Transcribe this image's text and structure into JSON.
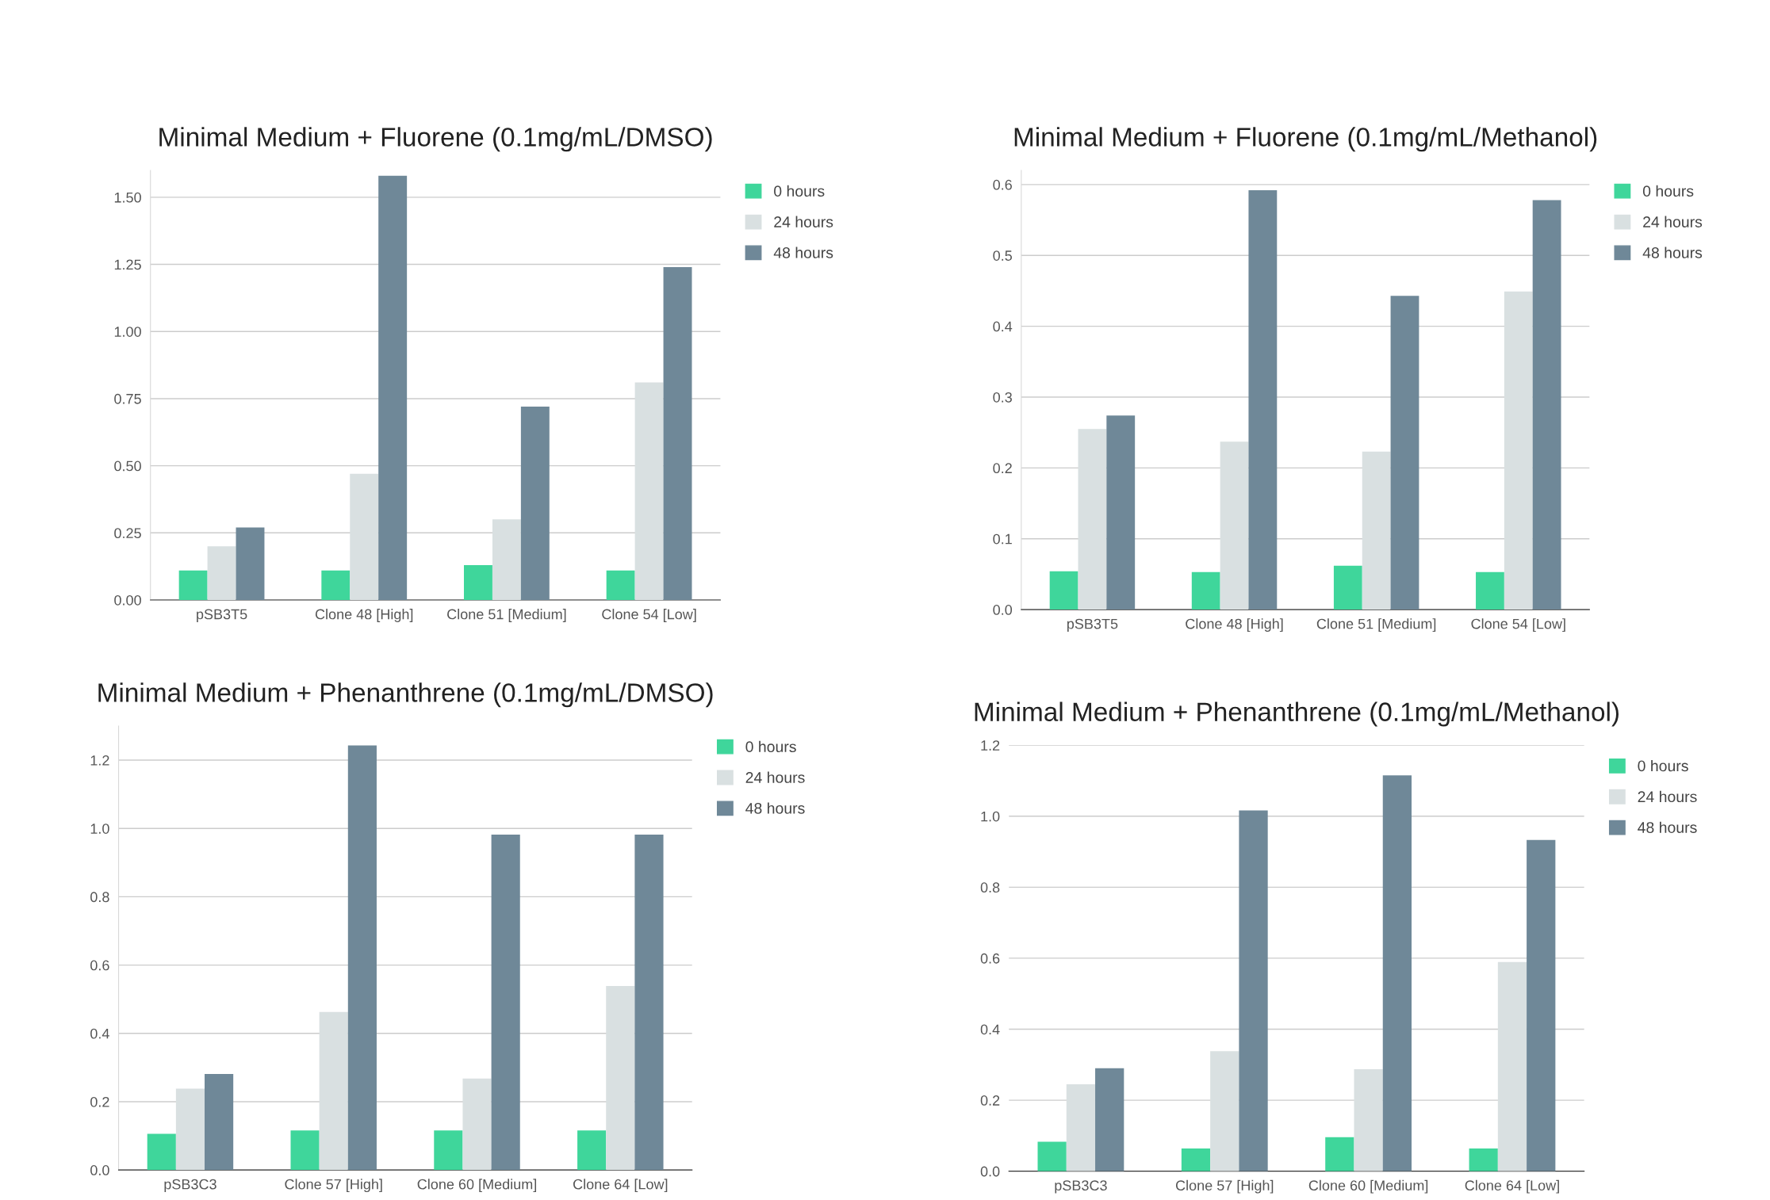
{
  "chart_data": [
    {
      "type": "bar",
      "title": "Minimal Medium + Fluorene (0.1mg/mL/DMSO)",
      "categories": [
        "pSB3T5",
        "Clone 48 [High]",
        "Clone 51 [Medium]",
        "Clone 54 [Low]"
      ],
      "series": [
        {
          "name": "0 hours",
          "color": "#3fd69b",
          "values": [
            0.11,
            0.11,
            0.13,
            0.11
          ]
        },
        {
          "name": "24 hours",
          "color": "#d9e0e1",
          "values": [
            0.2,
            0.47,
            0.3,
            0.81
          ]
        },
        {
          "name": "48 hours",
          "color": "#6f8898",
          "values": [
            0.27,
            1.58,
            0.72,
            1.24
          ]
        }
      ],
      "ylim": [
        0,
        1.6
      ],
      "yticks": [
        {
          "value": 0,
          "label": "0.00"
        },
        {
          "value": 0.25,
          "label": "0.25"
        },
        {
          "value": 0.5,
          "label": "0.50"
        },
        {
          "value": 0.75,
          "label": "0.75"
        },
        {
          "value": 1,
          "label": "1.00"
        },
        {
          "value": 1.25,
          "label": "1.25"
        },
        {
          "value": 1.5,
          "label": "1.50"
        }
      ],
      "grid": "y",
      "legend": "right"
    },
    {
      "type": "bar",
      "title": "Minimal Medium + Fluorene (0.1mg/mL/Methanol)",
      "categories": [
        "pSB3T5",
        "Clone 48 [High]",
        "Clone 51 [Medium]",
        "Clone 54 [Low]"
      ],
      "series": [
        {
          "name": "0 hours",
          "color": "#3fd69b",
          "values": [
            0.054,
            0.053,
            0.062,
            0.053
          ]
        },
        {
          "name": "24 hours",
          "color": "#d9e0e1",
          "values": [
            0.255,
            0.237,
            0.223,
            0.449
          ]
        },
        {
          "name": "48 hours",
          "color": "#6f8898",
          "values": [
            0.274,
            0.592,
            0.443,
            0.578
          ]
        }
      ],
      "ylim": [
        0,
        0.62
      ],
      "yticks": [
        {
          "value": 0,
          "label": "0.0"
        },
        {
          "value": 0.1,
          "label": "0.1"
        },
        {
          "value": 0.2,
          "label": "0.2"
        },
        {
          "value": 0.3,
          "label": "0.3"
        },
        {
          "value": 0.4,
          "label": "0.4"
        },
        {
          "value": 0.5,
          "label": "0.5"
        },
        {
          "value": 0.6,
          "label": "0.6"
        }
      ],
      "grid": "y",
      "legend": "right"
    },
    {
      "type": "bar",
      "title": "Minimal Medium + Phenanthrene (0.1mg/mL/DMSO)",
      "categories": [
        "pSB3C3",
        "Clone 57 [High]",
        "Clone 60 [Medium]",
        "Clone 64 [Low]"
      ],
      "series": [
        {
          "name": "0 hours",
          "color": "#3fd69b",
          "values": [
            0.106,
            0.116,
            0.116,
            0.116
          ]
        },
        {
          "name": "24 hours",
          "color": "#d9e0e1",
          "values": [
            0.238,
            0.463,
            0.268,
            0.539
          ]
        },
        {
          "name": "48 hours",
          "color": "#6f8898",
          "values": [
            0.281,
            1.243,
            0.982,
            0.982
          ]
        }
      ],
      "ylim": [
        0,
        1.3
      ],
      "yticks": [
        {
          "value": 0,
          "label": "0.0"
        },
        {
          "value": 0.2,
          "label": "0.2"
        },
        {
          "value": 0.4,
          "label": "0.4"
        },
        {
          "value": 0.6,
          "label": "0.6"
        },
        {
          "value": 0.8,
          "label": "0.8"
        },
        {
          "value": 1,
          "label": "1.0"
        },
        {
          "value": 1.2,
          "label": "1.2"
        }
      ],
      "grid": "y",
      "legend": "right"
    },
    {
      "type": "bar",
      "title": "Minimal Medium + Phenanthrene (0.1mg/mL/Methanol)",
      "categories": [
        "pSB3C3",
        "Clone 57 [High]",
        "Clone 60 [Medium]",
        "Clone 64 [Low]"
      ],
      "series": [
        {
          "name": "0 hours",
          "color": "#3fd69b",
          "values": [
            0.083,
            0.064,
            0.096,
            0.064
          ]
        },
        {
          "name": "24 hours",
          "color": "#d9e0e1",
          "values": [
            0.245,
            0.338,
            0.287,
            0.589
          ]
        },
        {
          "name": "48 hours",
          "color": "#6f8898",
          "values": [
            0.29,
            1.016,
            1.115,
            0.933
          ]
        }
      ],
      "ylim": [
        0,
        1.2
      ],
      "yticks": [
        {
          "value": 0,
          "label": "0.0"
        },
        {
          "value": 0.2,
          "label": "0.2"
        },
        {
          "value": 0.4,
          "label": "0.4"
        },
        {
          "value": 0.6,
          "label": "0.6"
        },
        {
          "value": 0.8,
          "label": "0.8"
        },
        {
          "value": 1,
          "label": "1.0"
        },
        {
          "value": 1.2,
          "label": "1.2"
        }
      ],
      "grid": "y",
      "legend": "right"
    }
  ]
}
